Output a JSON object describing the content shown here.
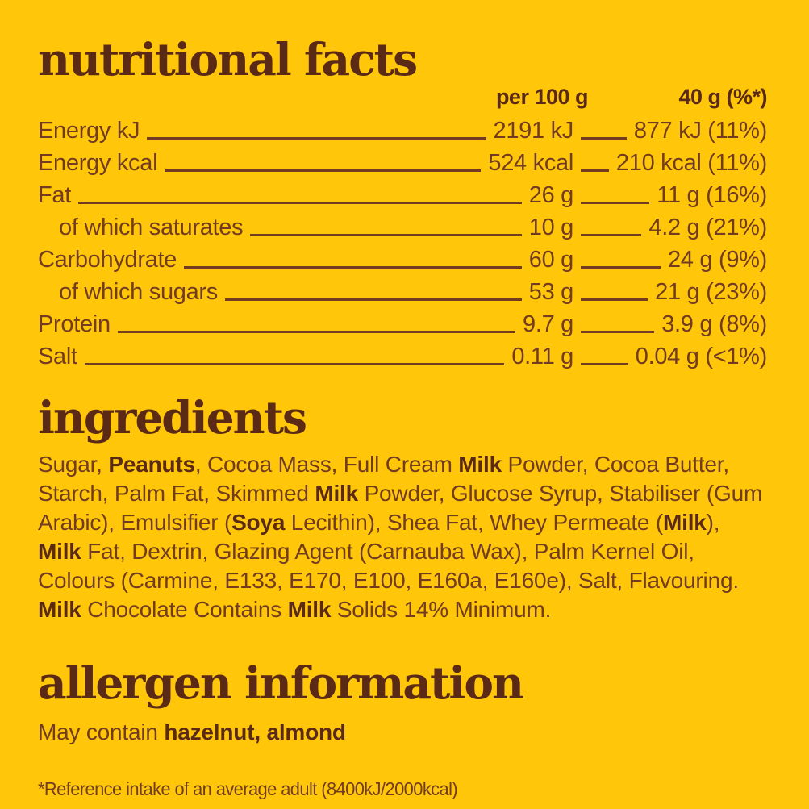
{
  "colors": {
    "background": "#FFC60A",
    "dark_brown": "#5A2A16",
    "body_brown": "#713C22"
  },
  "nutrition": {
    "title": "nutritional facts",
    "col1_header": "per 100 g",
    "col2_header": "40 g (%*)",
    "rows": [
      {
        "label": "Energy kJ",
        "per100": "2191 kJ",
        "per40": "877 kJ (11%)",
        "indent": false
      },
      {
        "label": "Energy kcal",
        "per100": "524 kcal",
        "per40": "210 kcal (11%)",
        "indent": false
      },
      {
        "label": "Fat",
        "per100": "26 g",
        "per40": "11 g (16%)",
        "indent": false
      },
      {
        "label": "of which saturates",
        "per100": "10 g",
        "per40": "4.2 g (21%)",
        "indent": true
      },
      {
        "label": "Carbohydrate",
        "per100": "60 g",
        "per40": "24 g (9%)",
        "indent": false
      },
      {
        "label": "of which sugars",
        "per100": "53 g",
        "per40": "21 g (23%)",
        "indent": true
      },
      {
        "label": "Protein",
        "per100": "9.7 g",
        "per40": "3.9 g (8%)",
        "indent": false
      },
      {
        "label": "Salt",
        "per100": "0.11 g",
        "per40": "0.04 g (<1%)",
        "indent": false
      }
    ]
  },
  "ingredients": {
    "title": "ingredients",
    "segments": [
      {
        "t": "Sugar, ",
        "b": false
      },
      {
        "t": "Peanuts",
        "b": true
      },
      {
        "t": ", Cocoa Mass, Full Cream ",
        "b": false
      },
      {
        "t": "Milk",
        "b": true
      },
      {
        "t": " Powder, Cocoa Butter, Starch, Palm Fat, Skimmed ",
        "b": false
      },
      {
        "t": "Milk",
        "b": true
      },
      {
        "t": " Powder, Glucose Syrup, Stabiliser (Gum Arabic), Emulsifier (",
        "b": false
      },
      {
        "t": "Soya",
        "b": true
      },
      {
        "t": " Lecithin), Shea Fat, Whey Permeate (",
        "b": false
      },
      {
        "t": "Milk",
        "b": true
      },
      {
        "t": "), ",
        "b": false
      },
      {
        "t": "Milk",
        "b": true
      },
      {
        "t": " Fat, Dextrin, Glazing Agent (Carnauba Wax), Palm Kernel Oil, Colours (Carmine, E133, E170, E100, E160a, E160e), Salt, Flavouring. ",
        "b": false
      },
      {
        "t": "Milk",
        "b": true
      },
      {
        "t": " Chocolate Contains ",
        "b": false
      },
      {
        "t": "Milk",
        "b": true
      },
      {
        "t": " Solids 14% Minimum.",
        "b": false
      }
    ]
  },
  "allergens": {
    "title": "allergen information",
    "segments": [
      {
        "t": "May contain ",
        "b": false
      },
      {
        "t": "hazelnut, almond",
        "b": true
      }
    ]
  },
  "footnote": "*Reference intake of an average adult (8400kJ/2000kcal)"
}
